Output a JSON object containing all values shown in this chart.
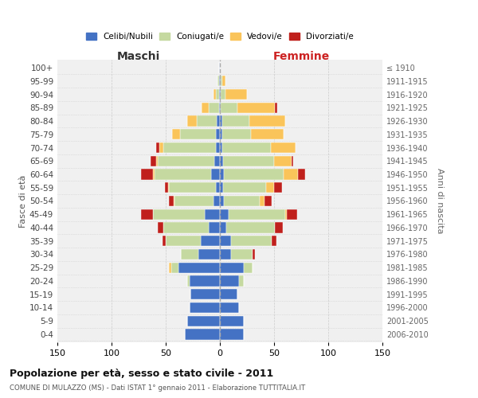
{
  "age_groups": [
    "0-4",
    "5-9",
    "10-14",
    "15-19",
    "20-24",
    "25-29",
    "30-34",
    "35-39",
    "40-44",
    "45-49",
    "50-54",
    "55-59",
    "60-64",
    "65-69",
    "70-74",
    "75-79",
    "80-84",
    "85-89",
    "90-94",
    "95-99",
    "100+"
  ],
  "year_labels": [
    "2006-2010",
    "2001-2005",
    "1996-2000",
    "1991-1995",
    "1986-1990",
    "1981-1985",
    "1976-1980",
    "1971-1975",
    "1966-1970",
    "1961-1965",
    "1956-1960",
    "1951-1955",
    "1946-1950",
    "1941-1945",
    "1936-1940",
    "1931-1935",
    "1926-1930",
    "1921-1925",
    "1916-1920",
    "1911-1915",
    "≤ 1910"
  ],
  "males_celibi": [
    32,
    30,
    28,
    27,
    28,
    38,
    20,
    18,
    10,
    14,
    6,
    4,
    8,
    5,
    4,
    4,
    3,
    1,
    1,
    1,
    1
  ],
  "males_coniugati": [
    0,
    0,
    0,
    0,
    2,
    7,
    16,
    32,
    42,
    48,
    36,
    43,
    52,
    52,
    48,
    33,
    18,
    9,
    3,
    1,
    0
  ],
  "males_vedovi": [
    0,
    0,
    0,
    0,
    0,
    2,
    0,
    0,
    0,
    0,
    1,
    1,
    2,
    2,
    4,
    7,
    9,
    7,
    2,
    0,
    0
  ],
  "males_divorziati": [
    0,
    0,
    0,
    0,
    0,
    0,
    0,
    3,
    5,
    11,
    4,
    3,
    11,
    5,
    3,
    0,
    0,
    0,
    0,
    0,
    0
  ],
  "females_nubili": [
    22,
    22,
    18,
    16,
    18,
    22,
    10,
    10,
    6,
    8,
    4,
    3,
    4,
    3,
    2,
    2,
    2,
    1,
    1,
    1,
    0
  ],
  "females_coniugate": [
    0,
    0,
    0,
    0,
    4,
    8,
    20,
    38,
    45,
    52,
    33,
    40,
    55,
    47,
    45,
    27,
    25,
    15,
    4,
    1,
    0
  ],
  "females_vedove": [
    0,
    0,
    0,
    0,
    0,
    0,
    0,
    0,
    0,
    2,
    4,
    7,
    13,
    16,
    23,
    30,
    33,
    35,
    20,
    3,
    0
  ],
  "females_divorziate": [
    0,
    0,
    0,
    0,
    0,
    0,
    2,
    4,
    7,
    9,
    7,
    7,
    7,
    2,
    0,
    0,
    0,
    2,
    0,
    0,
    0
  ],
  "color_celibi": "#4472c4",
  "color_coniugati": "#c5d9a0",
  "color_vedovi": "#fac45a",
  "color_divorziati": "#c0201c",
  "title": "Popolazione per età, sesso e stato civile - 2011",
  "subtitle": "COMUNE DI MULAZZO (MS) - Dati ISTAT 1° gennaio 2011 - Elaborazione TUTTITALIA.IT",
  "label_maschi": "Maschi",
  "label_femmine": "Femmine",
  "label_fasce": "Fasce di età",
  "label_anni": "Anni di nascita",
  "legend_celibi": "Celibi/Nubili",
  "legend_coniugati": "Coniugati/e",
  "legend_vedovi": "Vedovi/e",
  "legend_divorziati": "Divorziati/e",
  "xlim": 150,
  "bg_outer": "#ffffff",
  "bg_inner": "#f0f0f0"
}
